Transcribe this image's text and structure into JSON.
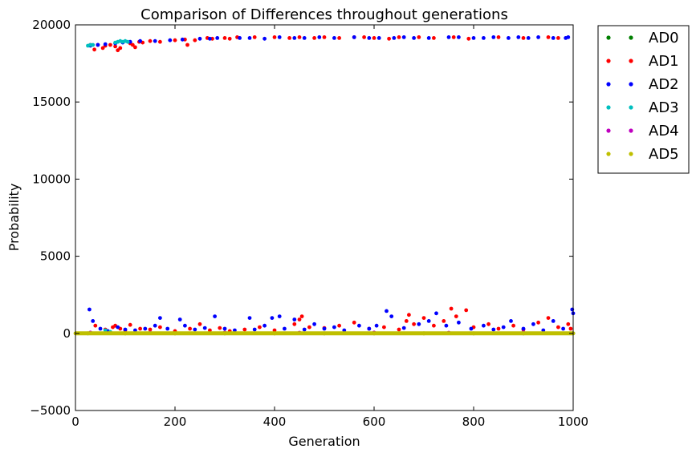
{
  "chart_data": {
    "type": "scatter",
    "title": "Comparison of Differences throughout generations",
    "xlabel": "Generation",
    "ylabel": "Probability",
    "xlim": [
      0,
      1000
    ],
    "ylim": [
      -5000,
      20000
    ],
    "xticks": [
      0,
      200,
      400,
      600,
      800,
      1000
    ],
    "yticks": [
      -5000,
      0,
      5000,
      10000,
      15000,
      20000
    ],
    "xtick_labels": [
      "0",
      "200",
      "400",
      "600",
      "800",
      "1000"
    ],
    "ytick_labels": [
      "−5000",
      "0",
      "5000",
      "10000",
      "15000",
      "20000"
    ],
    "grid": false,
    "legend_position": "outside-top-right",
    "series": [
      {
        "name": "AD0",
        "color": "#007f00",
        "points": [
          [
            25,
            0
          ],
          [
            100,
            0
          ],
          [
            200,
            0
          ],
          [
            300,
            0
          ],
          [
            400,
            0
          ],
          [
            500,
            0
          ],
          [
            600,
            0
          ],
          [
            700,
            0
          ],
          [
            800,
            0
          ],
          [
            900,
            0
          ],
          [
            1000,
            0
          ]
        ]
      },
      {
        "name": "AD1",
        "color": "#ff0000",
        "points": [
          [
            30,
            18700
          ],
          [
            38,
            18400
          ],
          [
            45,
            18700
          ],
          [
            55,
            18500
          ],
          [
            60,
            18650
          ],
          [
            70,
            18700
          ],
          [
            80,
            18600
          ],
          [
            85,
            18350
          ],
          [
            90,
            18500
          ],
          [
            110,
            18800
          ],
          [
            115,
            18700
          ],
          [
            120,
            18550
          ],
          [
            128,
            18900
          ],
          [
            135,
            18850
          ],
          [
            150,
            18950
          ],
          [
            170,
            18900
          ],
          [
            200,
            19000
          ],
          [
            220,
            19050
          ],
          [
            225,
            18700
          ],
          [
            240,
            19000
          ],
          [
            265,
            19150
          ],
          [
            275,
            19100
          ],
          [
            300,
            19150
          ],
          [
            310,
            19100
          ],
          [
            325,
            19200
          ],
          [
            360,
            19200
          ],
          [
            400,
            19200
          ],
          [
            430,
            19150
          ],
          [
            450,
            19200
          ],
          [
            480,
            19150
          ],
          [
            500,
            19200
          ],
          [
            530,
            19150
          ],
          [
            560,
            19200
          ],
          [
            580,
            19200
          ],
          [
            600,
            19150
          ],
          [
            630,
            19100
          ],
          [
            650,
            19200
          ],
          [
            690,
            19200
          ],
          [
            720,
            19150
          ],
          [
            760,
            19200
          ],
          [
            790,
            19100
          ],
          [
            850,
            19200
          ],
          [
            900,
            19150
          ],
          [
            950,
            19200
          ],
          [
            970,
            19150
          ],
          [
            40,
            500
          ],
          [
            60,
            250
          ],
          [
            75,
            400
          ],
          [
            80,
            500
          ],
          [
            90,
            300
          ],
          [
            100,
            200
          ],
          [
            110,
            550
          ],
          [
            130,
            300
          ],
          [
            150,
            250
          ],
          [
            170,
            400
          ],
          [
            200,
            150
          ],
          [
            230,
            300
          ],
          [
            250,
            600
          ],
          [
            270,
            200
          ],
          [
            290,
            350
          ],
          [
            310,
            150
          ],
          [
            340,
            250
          ],
          [
            370,
            400
          ],
          [
            400,
            200
          ],
          [
            440,
            600
          ],
          [
            450,
            900
          ],
          [
            455,
            1100
          ],
          [
            470,
            400
          ],
          [
            500,
            350
          ],
          [
            530,
            500
          ],
          [
            560,
            700
          ],
          [
            590,
            300
          ],
          [
            620,
            400
          ],
          [
            650,
            250
          ],
          [
            665,
            800
          ],
          [
            670,
            1200
          ],
          [
            680,
            600
          ],
          [
            700,
            1000
          ],
          [
            720,
            500
          ],
          [
            740,
            800
          ],
          [
            755,
            1600
          ],
          [
            765,
            1100
          ],
          [
            785,
            1500
          ],
          [
            800,
            400
          ],
          [
            830,
            600
          ],
          [
            850,
            300
          ],
          [
            880,
            500
          ],
          [
            900,
            250
          ],
          [
            930,
            700
          ],
          [
            950,
            1000
          ],
          [
            970,
            400
          ],
          [
            990,
            600
          ],
          [
            995,
            300
          ]
        ]
      },
      {
        "name": "AD2",
        "color": "#0000ff",
        "points": [
          [
            30,
            18650
          ],
          [
            45,
            18700
          ],
          [
            60,
            18750
          ],
          [
            80,
            18800
          ],
          [
            95,
            18850
          ],
          [
            110,
            18900
          ],
          [
            130,
            18950
          ],
          [
            160,
            18950
          ],
          [
            190,
            19000
          ],
          [
            215,
            19050
          ],
          [
            250,
            19100
          ],
          [
            270,
            19100
          ],
          [
            285,
            19150
          ],
          [
            330,
            19150
          ],
          [
            350,
            19150
          ],
          [
            380,
            19100
          ],
          [
            410,
            19200
          ],
          [
            440,
            19150
          ],
          [
            460,
            19150
          ],
          [
            490,
            19200
          ],
          [
            520,
            19150
          ],
          [
            560,
            19200
          ],
          [
            590,
            19150
          ],
          [
            610,
            19150
          ],
          [
            640,
            19150
          ],
          [
            660,
            19200
          ],
          [
            680,
            19150
          ],
          [
            710,
            19150
          ],
          [
            750,
            19200
          ],
          [
            770,
            19200
          ],
          [
            800,
            19150
          ],
          [
            820,
            19150
          ],
          [
            840,
            19200
          ],
          [
            870,
            19150
          ],
          [
            890,
            19200
          ],
          [
            910,
            19150
          ],
          [
            930,
            19200
          ],
          [
            960,
            19150
          ],
          [
            985,
            19150
          ],
          [
            990,
            19200
          ],
          [
            28,
            1550
          ],
          [
            35,
            800
          ],
          [
            50,
            300
          ],
          [
            65,
            150
          ],
          [
            85,
            400
          ],
          [
            100,
            250
          ],
          [
            120,
            200
          ],
          [
            140,
            300
          ],
          [
            160,
            500
          ],
          [
            170,
            1000
          ],
          [
            185,
            300
          ],
          [
            210,
            900
          ],
          [
            220,
            500
          ],
          [
            240,
            250
          ],
          [
            260,
            350
          ],
          [
            280,
            1100
          ],
          [
            300,
            300
          ],
          [
            320,
            200
          ],
          [
            350,
            1000
          ],
          [
            360,
            250
          ],
          [
            380,
            500
          ],
          [
            395,
            1000
          ],
          [
            410,
            1100
          ],
          [
            420,
            300
          ],
          [
            440,
            900
          ],
          [
            460,
            250
          ],
          [
            480,
            600
          ],
          [
            500,
            300
          ],
          [
            520,
            400
          ],
          [
            540,
            200
          ],
          [
            570,
            500
          ],
          [
            590,
            300
          ],
          [
            605,
            500
          ],
          [
            625,
            1450
          ],
          [
            635,
            1100
          ],
          [
            660,
            350
          ],
          [
            690,
            600
          ],
          [
            710,
            800
          ],
          [
            725,
            1300
          ],
          [
            745,
            500
          ],
          [
            770,
            700
          ],
          [
            795,
            300
          ],
          [
            820,
            500
          ],
          [
            840,
            250
          ],
          [
            860,
            400
          ],
          [
            875,
            800
          ],
          [
            900,
            300
          ],
          [
            920,
            600
          ],
          [
            940,
            200
          ],
          [
            960,
            800
          ],
          [
            980,
            300
          ],
          [
            998,
            1550
          ],
          [
            1000,
            1300
          ]
        ]
      },
      {
        "name": "AD3",
        "color": "#00bfbf",
        "points": [
          [
            25,
            18650
          ],
          [
            30,
            18700
          ],
          [
            35,
            18700
          ],
          [
            80,
            18850
          ],
          [
            85,
            18900
          ],
          [
            90,
            18950
          ],
          [
            95,
            18900
          ],
          [
            100,
            18950
          ],
          [
            105,
            18900
          ],
          [
            60,
            200
          ],
          [
            70,
            100
          ]
        ]
      },
      {
        "name": "AD4",
        "color": "#bf00bf",
        "points": [
          [
            30,
            50
          ],
          [
            150,
            40
          ],
          [
            300,
            50
          ],
          [
            450,
            40
          ],
          [
            600,
            50
          ],
          [
            750,
            40
          ],
          [
            900,
            50
          ]
        ]
      },
      {
        "name": "AD5",
        "color": "#bfbf00",
        "points": [
          [
            0,
            0
          ],
          [
            100,
            0
          ],
          [
            200,
            0
          ],
          [
            300,
            0
          ],
          [
            400,
            0
          ],
          [
            500,
            0
          ],
          [
            600,
            0
          ],
          [
            700,
            0
          ],
          [
            800,
            0
          ],
          [
            900,
            0
          ],
          [
            1000,
            0
          ]
        ]
      }
    ]
  }
}
